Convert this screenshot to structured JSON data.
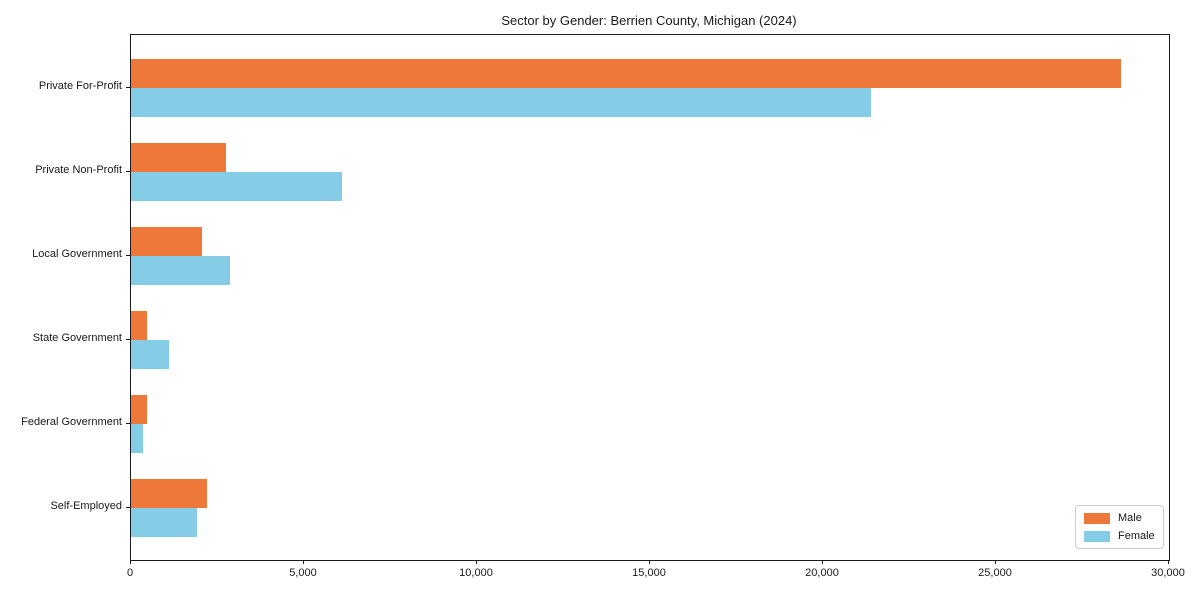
{
  "chart_data": {
    "type": "bar",
    "orientation": "horizontal",
    "title": "Sector by Gender: Berrien County, Michigan (2024)",
    "xlabel": "",
    "ylabel": "",
    "categories": [
      "Private For-Profit",
      "Private Non-Profit",
      "Local Government",
      "State Government",
      "Federal Government",
      "Self-Employed"
    ],
    "series": [
      {
        "name": "Male",
        "color": "#ed7839",
        "values": [
          28600,
          2750,
          2050,
          450,
          450,
          2200
        ]
      },
      {
        "name": "Female",
        "color": "#85cde7",
        "values": [
          21400,
          6100,
          2850,
          1100,
          350,
          1900
        ]
      }
    ],
    "xlim": [
      0,
      30000
    ],
    "x_tick_values": [
      0,
      5000,
      10000,
      15000,
      20000,
      25000,
      30000
    ],
    "x_tick_labels": [
      "0",
      "5,000",
      "10,000",
      "15,000",
      "20,000",
      "25,000",
      "30,000"
    ],
    "grid": false,
    "legend": {
      "position": "lower-right",
      "entries": [
        "Male",
        "Female"
      ]
    }
  }
}
